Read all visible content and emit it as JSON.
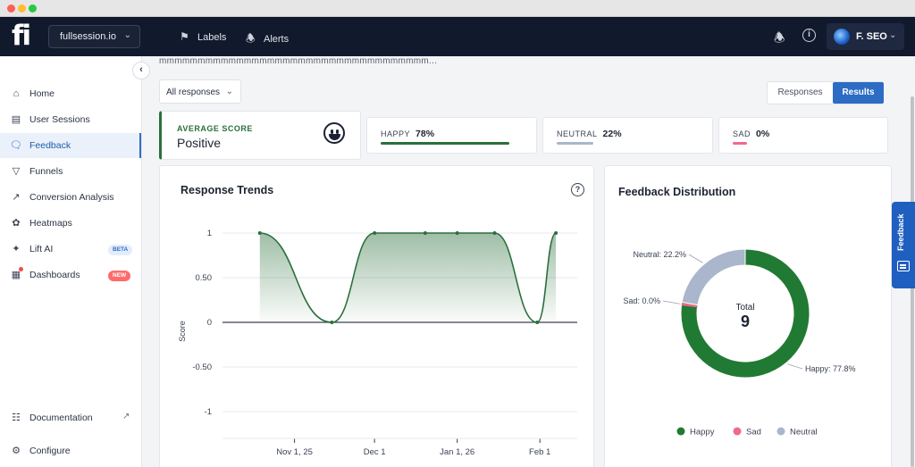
{
  "topnav": {
    "logo": "fi",
    "site_selector": "fullsession.io",
    "links": [
      {
        "label": "Labels",
        "icon": "tag-icon"
      },
      {
        "label": "Alerts",
        "icon": "bell-icon"
      }
    ],
    "user_name": "F. SEO"
  },
  "sidebar": {
    "items": [
      {
        "label": "Home",
        "icon": "home-icon",
        "active": false
      },
      {
        "label": "User Sessions",
        "icon": "sessions-icon",
        "active": false
      },
      {
        "label": "Feedback",
        "icon": "feedback-icon",
        "active": true
      },
      {
        "label": "Funnels",
        "icon": "funnel-icon",
        "active": false
      },
      {
        "label": "Conversion Analysis",
        "icon": "chart-line-icon",
        "active": false
      },
      {
        "label": "Heatmaps",
        "icon": "heatmap-icon",
        "active": false
      },
      {
        "label": "Lift AI",
        "icon": "sparkle-icon",
        "active": false,
        "badge": "BETA"
      },
      {
        "label": "Dashboards",
        "icon": "dashboard-icon",
        "active": false,
        "badge": "NEW"
      }
    ],
    "bottom": [
      {
        "label": "Documentation",
        "icon": "book-icon"
      },
      {
        "label": "Configure",
        "icon": "gear-icon"
      }
    ]
  },
  "main": {
    "description": "mmmmmmmmmmmmmmmmmmmmmmmmmmmmmmmmmmm...",
    "responses_filter": "All responses",
    "toggle": {
      "responses": "Responses",
      "results": "Results",
      "selected": "Results"
    },
    "average": {
      "label": "AVERAGE SCORE",
      "value": "Positive"
    },
    "stats": [
      {
        "label": "HAPPY",
        "value": "78%",
        "fraction": 0.78,
        "color": "#2b6f3c"
      },
      {
        "label": "NEUTRAL",
        "value": "22%",
        "fraction": 0.22,
        "color": "#a9b6cc"
      },
      {
        "label": "SAD",
        "value": "0%",
        "fraction": 0.0,
        "color": "#f06a8a"
      }
    ],
    "trend_title": "Response Trends",
    "distribution_title": "Feedback Distribution",
    "feedback_tab": "Feedback"
  },
  "chart_data": [
    {
      "type": "area",
      "title": "Response Trends",
      "ylabel": "Score",
      "xlabel": "",
      "ylim": [
        -1,
        1
      ],
      "yticks": [
        "1",
        "0.50",
        "0",
        "-0.50",
        "-1"
      ],
      "xticks": [
        "Nov 1, 25",
        "Dec 1",
        "Jan 1, 26",
        "Feb 1"
      ],
      "x": [
        "2025-10-19",
        "2025-11-15",
        "2025-12-01",
        "2025-12-20",
        "2026-01-01",
        "2026-01-15",
        "2026-01-31",
        "2026-02-07"
      ],
      "values": [
        1,
        0,
        1,
        1,
        1,
        1,
        0,
        1
      ],
      "color": "#2b6f3c",
      "grid": true
    },
    {
      "type": "pie",
      "title": "Feedback Distribution",
      "center_label": "Total",
      "center_value": "9",
      "slices": [
        {
          "name": "Happy",
          "value": 77.8,
          "label": "Happy: 77.8%",
          "color": "#217a33"
        },
        {
          "name": "Sad",
          "value": 0.0,
          "label": "Sad: 0.0%",
          "color": "#f06a8a"
        },
        {
          "name": "Neutral",
          "value": 22.2,
          "label": "Neutral: 22.2%",
          "color": "#a9b6cc"
        }
      ],
      "legend": [
        "Happy",
        "Sad",
        "Neutral"
      ],
      "legend_position": "bottom"
    }
  ]
}
